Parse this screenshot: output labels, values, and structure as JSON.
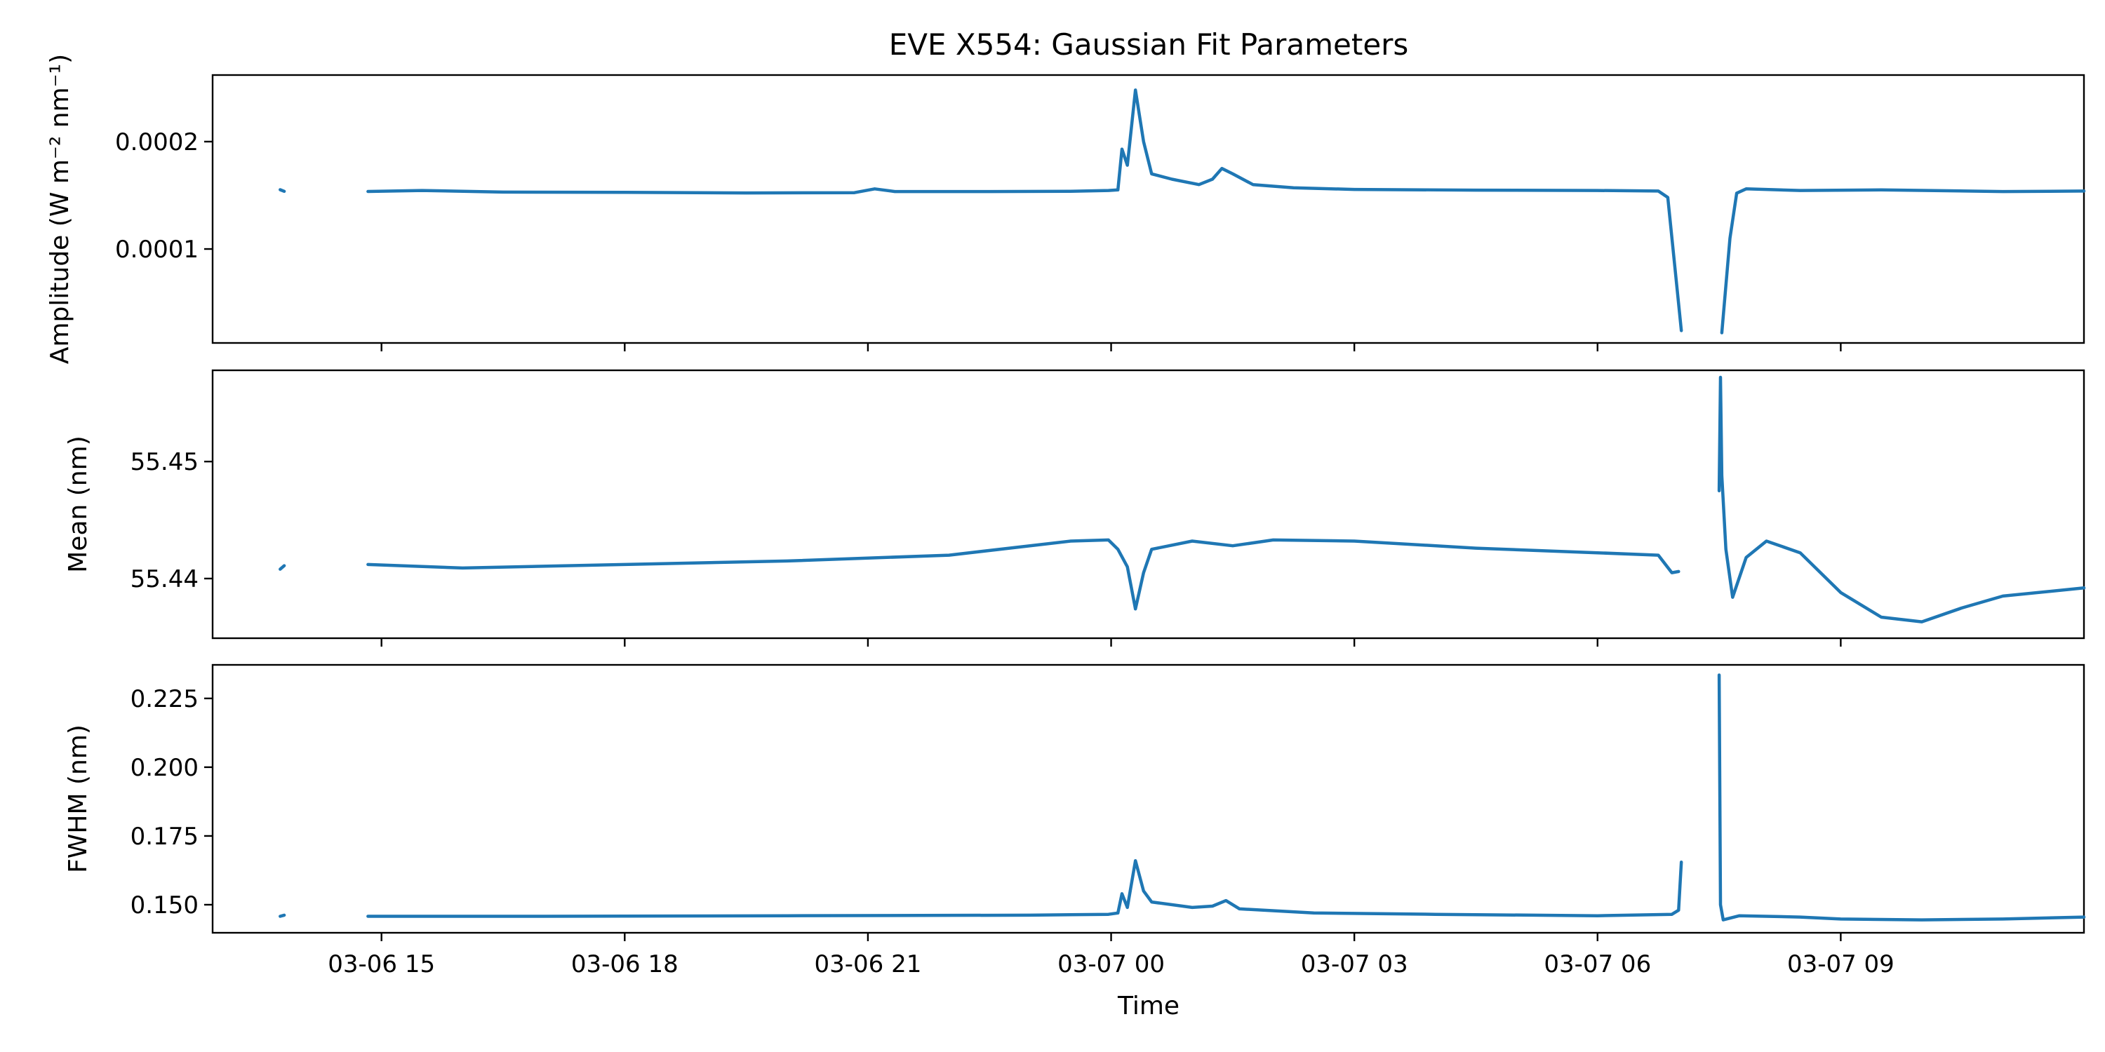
{
  "figure": {
    "title": "EVE X554: Gaussian Fit Parameters",
    "xlabel": "Time",
    "line_color": "#1f77b4"
  },
  "chart_data": [
    {
      "type": "line",
      "id": "amplitude",
      "title": "EVE X554: Gaussian Fit Parameters",
      "ylabel": "Amplitude (W m⁻² nm⁻¹)",
      "xlabel": "",
      "xlim": [
        "03-06 12:55",
        "03-07 12:00"
      ],
      "ylim": [
        1.25e-05,
        0.000262
      ],
      "yticks": [
        0.0001,
        0.0002
      ],
      "ytick_labels": [
        "0.0001",
        "0.0002"
      ],
      "xticks": [
        "03-06 15",
        "03-06 18",
        "03-06 21",
        "03-07 00",
        "03-07 03",
        "03-07 06",
        "03-07 09"
      ],
      "xtick_labels_visible": false,
      "series": [
        {
          "segments": [
            [
              [
                "03-06 13:45",
                0.0001552
              ],
              [
                "03-06 13:48",
                0.0001537
              ]
            ],
            [
              [
                "03-06 14:50",
                0.0001536
              ],
              [
                "03-06 15:30",
                0.0001545
              ],
              [
                "03-06 16:30",
                0.000153
              ],
              [
                "03-06 18:00",
                0.0001527
              ],
              [
                "03-06 19:30",
                0.0001522
              ],
              [
                "03-06 20:50",
                0.0001525
              ],
              [
                "03-06 21:05",
                0.000156
              ],
              [
                "03-06 21:20",
                0.0001535
              ],
              [
                "03-06 22:30",
                0.0001535
              ],
              [
                "03-06 23:30",
                0.0001537
              ],
              [
                "03-06 23:58",
                0.0001545
              ],
              [
                "03-07 00:05",
                0.000155
              ],
              [
                "03-07 00:08",
                0.000193
              ],
              [
                "03-07 00:12",
                0.000178
              ],
              [
                "03-07 00:18",
                0.000248
              ],
              [
                "03-07 00:24",
                0.0002
              ],
              [
                "03-07 00:30",
                0.00017
              ],
              [
                "03-07 00:45",
                0.000165
              ],
              [
                "03-07 01:05",
                0.00016
              ],
              [
                "03-07 01:15",
                0.000165
              ],
              [
                "03-07 01:22",
                0.000175
              ],
              [
                "03-07 01:30",
                0.00017
              ],
              [
                "03-07 01:45",
                0.00016
              ],
              [
                "03-07 02:15",
                0.000157
              ],
              [
                "03-07 03:00",
                0.0001555
              ],
              [
                "03-07 04:30",
                0.0001548
              ],
              [
                "03-07 06:00",
                0.0001545
              ],
              [
                "03-07 06:45",
                0.000154
              ],
              [
                "03-07 06:52",
                0.000148
              ],
              [
                "03-07 07:02",
                2.4e-05
              ]
            ],
            [
              [
                "03-07 07:32",
                2.2e-05
              ],
              [
                "03-07 07:38",
                0.00011
              ],
              [
                "03-07 07:43",
                0.000152
              ],
              [
                "03-07 07:50",
                0.000156
              ],
              [
                "03-07 08:30",
                0.0001545
              ],
              [
                "03-07 09:30",
                0.000155
              ],
              [
                "03-07 11:00",
                0.0001535
              ],
              [
                "03-07 12:00",
                0.000154
              ]
            ]
          ]
        }
      ]
    },
    {
      "type": "line",
      "id": "mean",
      "ylabel": "Mean (nm)",
      "xlabel": "",
      "xlim": [
        "03-06 12:55",
        "03-07 12:00"
      ],
      "ylim": [
        55.4349,
        55.4578
      ],
      "yticks": [
        55.44,
        55.45
      ],
      "ytick_labels": [
        "55.44",
        "55.45"
      ],
      "xticks": [
        "03-06 15",
        "03-06 18",
        "03-06 21",
        "03-07 00",
        "03-07 03",
        "03-07 06",
        "03-07 09"
      ],
      "xtick_labels_visible": false,
      "series": [
        {
          "segments": [
            [
              [
                "03-06 13:45",
                55.4408
              ],
              [
                "03-06 13:48",
                55.4411
              ]
            ],
            [
              [
                "03-06 14:50",
                55.4412
              ],
              [
                "03-06 16:00",
                55.4409
              ],
              [
                "03-06 18:00",
                55.4412
              ],
              [
                "03-06 20:00",
                55.4415
              ],
              [
                "03-06 22:00",
                55.442
              ],
              [
                "03-06 23:30",
                55.4432
              ],
              [
                "03-06 23:58",
                55.4433
              ],
              [
                "03-07 00:05",
                55.4425
              ],
              [
                "03-07 00:12",
                55.441
              ],
              [
                "03-07 00:18",
                55.4374
              ],
              [
                "03-07 00:24",
                55.4405
              ],
              [
                "03-07 00:30",
                55.4425
              ],
              [
                "03-07 01:00",
                55.4432
              ],
              [
                "03-07 01:30",
                55.4428
              ],
              [
                "03-07 02:00",
                55.4433
              ],
              [
                "03-07 03:00",
                55.4432
              ],
              [
                "03-07 04:30",
                55.4426
              ],
              [
                "03-07 06:00",
                55.4422
              ],
              [
                "03-07 06:45",
                55.442
              ],
              [
                "03-07 06:55",
                55.4405
              ],
              [
                "03-07 07:00",
                55.4406
              ]
            ],
            [
              [
                "03-07 07:30",
                55.4475
              ],
              [
                "03-07 07:31",
                55.4572
              ],
              [
                "03-07 07:32",
                55.4488
              ],
              [
                "03-07 07:35",
                55.4425
              ],
              [
                "03-07 07:40",
                55.4384
              ],
              [
                "03-07 07:50",
                55.4418
              ],
              [
                "03-07 08:05",
                55.4432
              ],
              [
                "03-07 08:30",
                55.4422
              ],
              [
                "03-07 09:00",
                55.4388
              ],
              [
                "03-07 09:30",
                55.4367
              ],
              [
                "03-07 10:00",
                55.4363
              ],
              [
                "03-07 10:30",
                55.4375
              ],
              [
                "03-07 11:00",
                55.4385
              ],
              [
                "03-07 12:00",
                55.4392
              ]
            ]
          ]
        }
      ]
    },
    {
      "type": "line",
      "id": "fwhm",
      "ylabel": "FWHM (nm)",
      "xlabel": "Time",
      "xlim": [
        "03-06 12:55",
        "03-07 12:00"
      ],
      "ylim": [
        0.1398,
        0.2372
      ],
      "yticks": [
        0.15,
        0.175,
        0.2,
        0.225
      ],
      "ytick_labels": [
        "0.150",
        "0.175",
        "0.200",
        "0.225"
      ],
      "xticks": [
        "03-06 15",
        "03-06 18",
        "03-06 21",
        "03-07 00",
        "03-07 03",
        "03-07 06",
        "03-07 09"
      ],
      "xtick_labels": [
        "03-06 15",
        "03-06 18",
        "03-06 21",
        "03-07 00",
        "03-07 03",
        "03-07 06",
        "03-07 09"
      ],
      "series": [
        {
          "segments": [
            [
              [
                "03-06 13:45",
                0.1458
              ],
              [
                "03-06 13:48",
                0.1462
              ]
            ],
            [
              [
                "03-06 14:50",
                0.1458
              ],
              [
                "03-06 17:00",
                0.1458
              ],
              [
                "03-06 20:00",
                0.146
              ],
              [
                "03-06 23:00",
                0.1462
              ],
              [
                "03-06 23:58",
                0.1465
              ],
              [
                "03-07 00:05",
                0.147
              ],
              [
                "03-07 00:08",
                0.154
              ],
              [
                "03-07 00:12",
                0.149
              ],
              [
                "03-07 00:18",
                0.166
              ],
              [
                "03-07 00:24",
                0.155
              ],
              [
                "03-07 00:30",
                0.151
              ],
              [
                "03-07 01:00",
                0.149
              ],
              [
                "03-07 01:15",
                0.1495
              ],
              [
                "03-07 01:25",
                0.1515
              ],
              [
                "03-07 01:35",
                0.1485
              ],
              [
                "03-07 02:30",
                0.147
              ],
              [
                "03-07 04:00",
                0.1465
              ],
              [
                "03-07 06:00",
                0.146
              ],
              [
                "03-07 06:55",
                0.1465
              ],
              [
                "03-07 07:00",
                0.148
              ],
              [
                "03-07 07:02",
                0.1655
              ]
            ],
            [
              [
                "03-07 07:30",
                0.2335
              ],
              [
                "03-07 07:31",
                0.15
              ],
              [
                "03-07 07:33",
                0.1445
              ],
              [
                "03-07 07:45",
                0.146
              ],
              [
                "03-07 08:30",
                0.1455
              ],
              [
                "03-07 09:00",
                0.1448
              ],
              [
                "03-07 10:00",
                0.1445
              ],
              [
                "03-07 11:00",
                0.1448
              ],
              [
                "03-07 12:00",
                0.1455
              ]
            ]
          ]
        }
      ]
    }
  ]
}
